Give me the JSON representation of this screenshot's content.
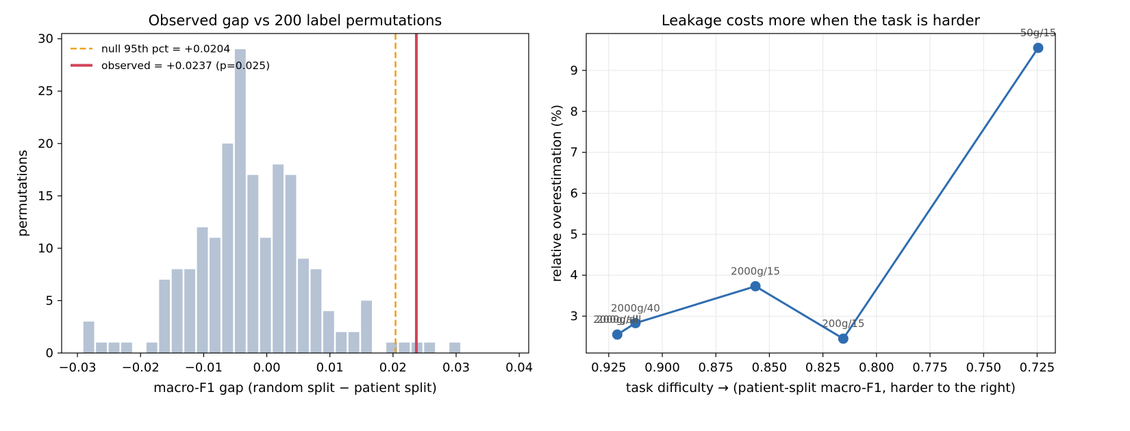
{
  "chart_data": [
    {
      "type": "bar",
      "title": "Observed gap vs 200 label permutations",
      "xlabel": "macro-F1 gap  (random split − patient split)",
      "ylabel": "permutations",
      "xlim": [
        -0.0325,
        0.0415
      ],
      "ylim": [
        0,
        30.5
      ],
      "xticks": [
        -0.03,
        -0.02,
        -0.01,
        0.0,
        0.01,
        0.02,
        0.03,
        0.04
      ],
      "xtick_labels": [
        "−0.03",
        "−0.02",
        "−0.01",
        "0.00",
        "0.01",
        "0.02",
        "0.03",
        "0.04"
      ],
      "yticks": [
        0,
        5,
        10,
        15,
        20,
        25,
        30
      ],
      "ytick_labels": [
        "0",
        "5",
        "10",
        "15",
        "20",
        "25",
        "30"
      ],
      "bin_start": -0.0292,
      "bin_width": 0.002,
      "counts": [
        3,
        1,
        1,
        1,
        0,
        1,
        7,
        8,
        8,
        12,
        11,
        20,
        29,
        17,
        11,
        18,
        17,
        9,
        8,
        4,
        2,
        2,
        5,
        0,
        1,
        1,
        1,
        1,
        0,
        1
      ],
      "bar_color": "#b5c3d4",
      "vlines": [
        {
          "name": "null 95th pct = +0.0204",
          "x": 0.0204,
          "color": "#f0a020",
          "style": "dashed"
        },
        {
          "name": "observed = +0.0237  (p=0.025)",
          "x": 0.0237,
          "color": "#d04458",
          "style": "solid"
        }
      ],
      "legend_position": "upper-left",
      "grid": false
    },
    {
      "type": "line",
      "title": "Leakage costs more when the task is harder",
      "xlabel": "task difficulty  →  (patient-split macro-F1, harder to the right)",
      "ylabel": "relative overestimation (%)",
      "x_inverted": true,
      "xlim": [
        0.9355,
        0.7165
      ],
      "ylim": [
        2.1,
        9.9
      ],
      "xticks": [
        0.925,
        0.9,
        0.875,
        0.85,
        0.825,
        0.8,
        0.775,
        0.75,
        0.725
      ],
      "xtick_labels": [
        "0.925",
        "0.900",
        "0.875",
        "0.850",
        "0.825",
        "0.800",
        "0.775",
        "0.750",
        "0.725"
      ],
      "yticks": [
        3,
        4,
        5,
        6,
        7,
        8,
        9
      ],
      "ytick_labels": [
        "3",
        "4",
        "5",
        "6",
        "7",
        "8",
        "9"
      ],
      "grid": true,
      "line_color": "#2f6db0",
      "points": [
        {
          "x": 0.921,
          "y": 2.55,
          "label": "2000g/all"
        },
        {
          "x": 0.9125,
          "y": 2.83,
          "label": "2000g/40"
        },
        {
          "x": 0.8565,
          "y": 3.73,
          "label": "2000g/15"
        },
        {
          "x": 0.8155,
          "y": 2.45,
          "label": "200g/15"
        },
        {
          "x": 0.7245,
          "y": 9.55,
          "label": "50g/15"
        }
      ],
      "overlap_label": "200g/all"
    }
  ]
}
